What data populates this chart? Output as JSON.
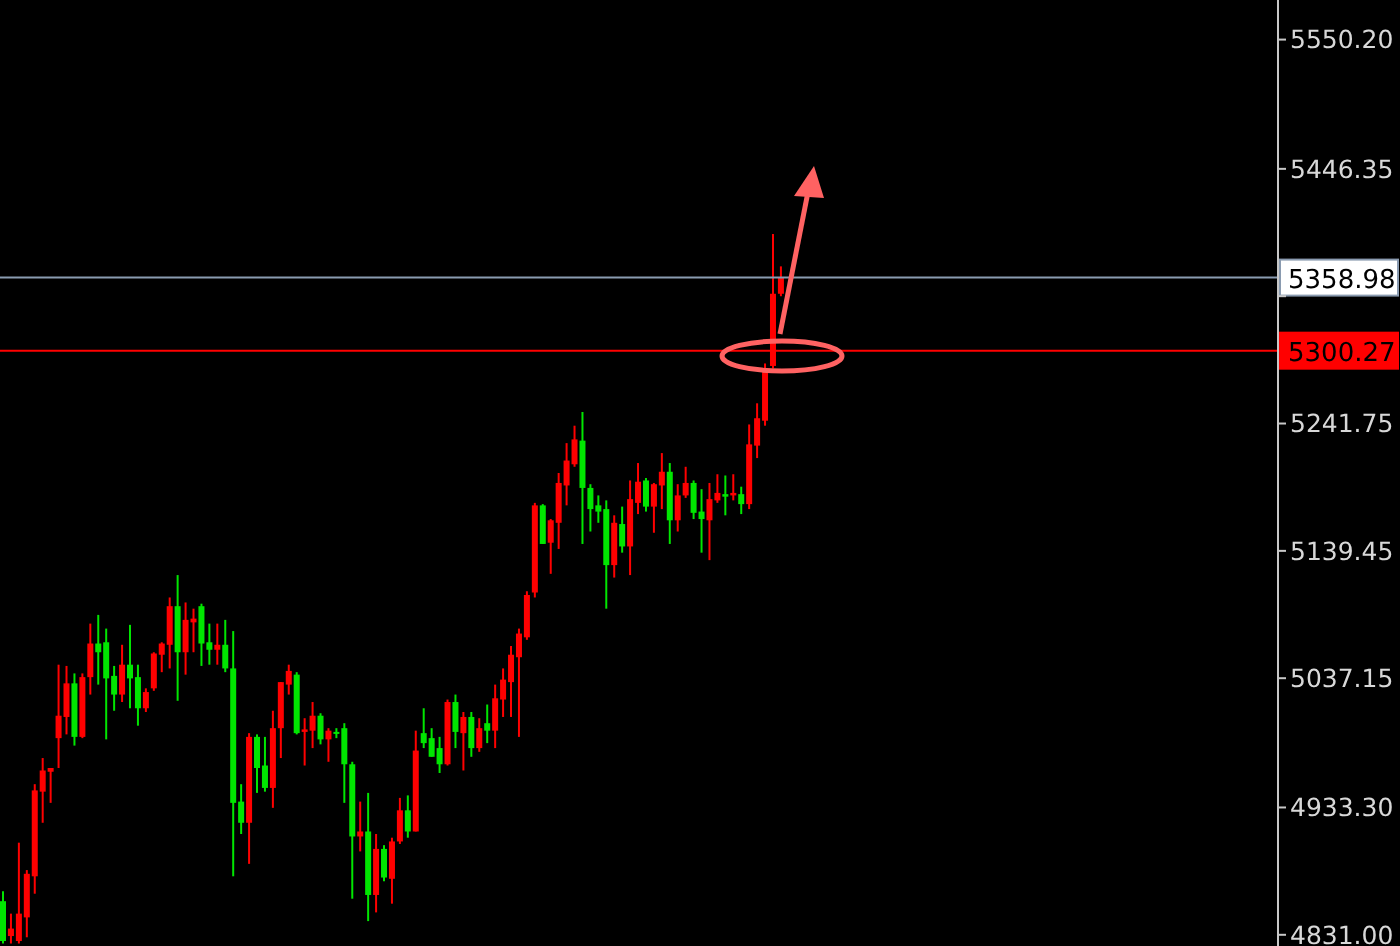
{
  "chart_data": {
    "type": "candlestick",
    "categories": [
      null,
      null,
      null,
      null,
      null,
      null,
      null,
      null,
      null,
      null,
      null,
      null,
      null,
      null,
      null,
      null,
      null,
      null,
      null,
      null,
      null,
      null,
      null,
      null,
      null,
      null,
      null,
      null,
      null,
      null,
      null,
      null,
      null,
      null,
      null,
      null,
      null,
      null,
      null,
      null,
      null,
      null,
      null,
      null,
      null,
      null,
      null,
      null,
      null,
      null,
      null,
      null,
      null,
      null,
      null,
      null,
      null,
      null,
      null,
      null,
      null,
      null,
      null,
      null,
      null,
      null,
      null,
      null,
      null,
      null,
      null,
      null,
      null,
      null,
      null,
      null,
      null,
      null,
      null,
      null,
      null,
      null,
      null,
      null,
      null,
      null,
      null,
      null,
      null,
      null,
      null,
      null,
      null,
      null,
      null,
      null,
      null,
      null,
      null,
      null,
      null,
      null,
      null,
      null,
      null,
      null,
      null,
      null,
      null,
      null,
      null,
      null,
      null,
      null,
      null,
      null,
      null,
      null,
      null,
      null,
      null,
      null,
      null,
      null,
      null,
      null,
      null,
      null,
      null,
      null,
      null,
      null,
      null,
      null,
      null,
      null,
      null,
      null,
      null,
      null,
      null,
      null,
      null,
      null,
      null,
      null,
      null,
      null,
      null,
      null,
      null,
      null,
      null,
      null,
      null,
      null,
      null,
      null,
      null,
      null,
      null
    ],
    "ohlc": [
      [
        4858,
        4866,
        4824,
        4826
      ],
      [
        4830,
        4848,
        4824,
        4836
      ],
      [
        4826,
        4905,
        4824,
        4848
      ],
      [
        4845,
        4883,
        4829,
        4880
      ],
      [
        4878,
        4952,
        4864,
        4947
      ],
      [
        4946,
        4973,
        4921,
        4963
      ],
      [
        4962,
        4965,
        4937,
        4965
      ],
      [
        4989,
        5048,
        4965,
        5007
      ],
      [
        5006,
        5047,
        4992,
        5033
      ],
      [
        5033,
        5041,
        4983,
        4990
      ],
      [
        4990,
        5041,
        4989,
        5038
      ],
      [
        5038,
        5081,
        5024,
        5065
      ],
      [
        5065,
        5088,
        5032,
        5058
      ],
      [
        5066,
        5077,
        4988,
        5037
      ],
      [
        5039,
        5047,
        5011,
        5024
      ],
      [
        5024,
        5064,
        5018,
        5048
      ],
      [
        5048,
        5080,
        5013,
        5037
      ],
      [
        5038,
        5048,
        4999,
        5013
      ],
      [
        5013,
        5029,
        5010,
        5026
      ],
      [
        5029,
        5058,
        5027,
        5057
      ],
      [
        5056,
        5066,
        5042,
        5065
      ],
      [
        5064,
        5102,
        5045,
        5095
      ],
      [
        5095,
        5120,
        5019,
        5058
      ],
      [
        5058,
        5098,
        5040,
        5084
      ],
      [
        5082,
        5093,
        5058,
        5085
      ],
      [
        5095,
        5097,
        5047,
        5065
      ],
      [
        5066,
        5081,
        5048,
        5060
      ],
      [
        5060,
        5081,
        5048,
        5064
      ],
      [
        5064,
        5084,
        5042,
        5045
      ],
      [
        5045,
        5075,
        4878,
        4937
      ],
      [
        4938,
        4952,
        4912,
        4921
      ],
      [
        4921,
        4993,
        4888,
        4990
      ],
      [
        4990,
        4992,
        4945,
        4965
      ],
      [
        4967,
        4990,
        4946,
        4949
      ],
      [
        4949,
        5011,
        4933,
        4997
      ],
      [
        4997,
        5034,
        4973,
        5034
      ],
      [
        5032,
        5048,
        5024,
        5043
      ],
      [
        5040,
        5042,
        4992,
        4993
      ],
      [
        4994,
        5005,
        4967,
        4996
      ],
      [
        4995,
        5018,
        4981,
        5007
      ],
      [
        5007,
        5009,
        4984,
        4988
      ],
      [
        4988,
        4997,
        4970,
        4995
      ],
      [
        4994,
        4997,
        4989,
        4993
      ],
      [
        4997,
        5001,
        4937,
        4968
      ],
      [
        4968,
        4970,
        4860,
        4910
      ],
      [
        4910,
        4938,
        4898,
        4914
      ],
      [
        4914,
        4945,
        4842,
        4863
      ],
      [
        4863,
        4912,
        4849,
        4900
      ],
      [
        4900,
        4903,
        4874,
        4877
      ],
      [
        4876,
        4909,
        4856,
        4906
      ],
      [
        4906,
        4941,
        4904,
        4931
      ],
      [
        4931,
        4943,
        4909,
        4914
      ],
      [
        4914,
        4995,
        4914,
        4979
      ],
      [
        4993,
        5013,
        4981,
        4985
      ],
      [
        4989,
        4997,
        4974,
        4974
      ],
      [
        4981,
        4990,
        4961,
        4968
      ],
      [
        4968,
        5020,
        4967,
        5018
      ],
      [
        5018,
        5024,
        4981,
        4994
      ],
      [
        4993,
        5010,
        4963,
        5006
      ],
      [
        5006,
        5010,
        4974,
        4981
      ],
      [
        4981,
        5005,
        4978,
        4997
      ],
      [
        5001,
        5016,
        4985,
        4995
      ],
      [
        4995,
        5032,
        4981,
        5021
      ],
      [
        5020,
        5045,
        5006,
        5036
      ],
      [
        5034,
        5063,
        5006,
        5056
      ],
      [
        5054,
        5077,
        4990,
        5073
      ],
      [
        5070,
        5107,
        5068,
        5104
      ],
      [
        5106,
        5178,
        5102,
        5176
      ],
      [
        5176,
        5177,
        5145,
        5145
      ],
      [
        5146,
        5165,
        5121,
        5164
      ],
      [
        5162,
        5202,
        5141,
        5194
      ],
      [
        5192,
        5226,
        5176,
        5212
      ],
      [
        5209,
        5240,
        5207,
        5229
      ],
      [
        5228,
        5251,
        5145,
        5190
      ],
      [
        5190,
        5193,
        5155,
        5173
      ],
      [
        5176,
        5184,
        5162,
        5171
      ],
      [
        5173,
        5180,
        5093,
        5128
      ],
      [
        5128,
        5168,
        5118,
        5162
      ],
      [
        5161,
        5175,
        5138,
        5143
      ],
      [
        5143,
        5196,
        5120,
        5181
      ],
      [
        5178,
        5210,
        5169,
        5195
      ],
      [
        5196,
        5198,
        5171,
        5175
      ],
      [
        5175,
        5194,
        5154,
        5193
      ],
      [
        5192,
        5218,
        5173,
        5203
      ],
      [
        5203,
        5210,
        5145,
        5164
      ],
      [
        5164,
        5193,
        5155,
        5184
      ],
      [
        5184,
        5207,
        5182,
        5194
      ],
      [
        5194,
        5196,
        5165,
        5170
      ],
      [
        5171,
        5189,
        5138,
        5165
      ],
      [
        5164,
        5194,
        5132,
        5181
      ],
      [
        5180,
        5201,
        5178,
        5186
      ],
      [
        5185,
        5200,
        5168,
        5183
      ],
      [
        5184,
        5201,
        5180,
        5186
      ],
      [
        5185,
        5191,
        5169,
        5177
      ],
      [
        5177,
        5241,
        5173,
        5225
      ],
      [
        5224,
        5258,
        5214,
        5246
      ],
      [
        5244,
        5290,
        5240,
        5285
      ],
      [
        5288,
        5394,
        5286,
        5346
      ],
      [
        5346,
        5368,
        5344,
        5359
      ],
      null,
      null,
      null,
      null,
      null,
      null,
      null,
      null,
      null,
      null,
      null,
      null,
      null,
      null,
      null,
      null,
      null,
      null,
      null,
      null,
      null,
      null,
      null,
      null,
      null,
      null,
      null,
      null,
      null,
      null,
      null,
      null,
      null,
      null,
      null,
      null,
      null,
      null,
      null,
      null,
      null,
      null,
      null,
      null,
      null,
      null,
      null,
      null,
      null,
      null,
      null,
      null,
      null,
      null,
      null,
      null,
      null,
      null,
      null,
      null,
      null,
      null
    ],
    "colors": [
      "#00e600",
      "#ff0000",
      "#ff0000",
      "#ff0000",
      "#ff0000",
      "#ff0000",
      "#ff0000",
      "#ff0000",
      "#ff0000",
      "#00e600",
      "#ff0000",
      "#ff0000",
      "#00e600",
      "#00e600",
      "#00e600",
      "#ff0000",
      "#00e600",
      "#00e600",
      "#ff0000",
      "#ff0000",
      "#ff0000",
      "#ff0000",
      "#00e600",
      "#ff0000",
      "#ff0000",
      "#00e600",
      "#00e600",
      "#ff0000",
      "#00e600",
      "#00e600",
      "#00e600",
      "#ff0000",
      "#00e600",
      "#00e600",
      "#ff0000",
      "#ff0000",
      "#ff0000",
      "#00e600",
      "#ff0000",
      "#ff0000",
      "#00e600",
      "#ff0000",
      "#00e600",
      "#00e600",
      "#00e600",
      "#ff0000",
      "#00e600",
      "#ff0000",
      "#00e600",
      "#ff0000",
      "#ff0000",
      "#00e600",
      "#ff0000",
      "#00e600",
      "#00e600",
      "#00e600",
      "#ff0000",
      "#00e600",
      "#ff0000",
      "#00e600",
      "#ff0000",
      "#00e600",
      "#ff0000",
      "#ff0000",
      "#ff0000",
      "#ff0000",
      "#ff0000",
      "#ff0000",
      "#00e600",
      "#ff0000",
      "#ff0000",
      "#ff0000",
      "#ff0000",
      "#00e600",
      "#00e600",
      "#00e600",
      "#00e600",
      "#ff0000",
      "#00e600",
      "#ff0000",
      "#ff0000",
      "#00e600",
      "#ff0000",
      "#ff0000",
      "#00e600",
      "#ff0000",
      "#ff0000",
      "#00e600",
      "#00e600",
      "#ff0000",
      "#ff0000",
      "#00e600",
      "#ff0000",
      "#00e600",
      "#ff0000",
      "#ff0000",
      "#ff0000",
      "#ff0000",
      "#ff0000",
      null,
      null,
      null,
      null,
      null,
      null,
      null,
      null,
      null,
      null,
      null,
      null,
      null,
      null,
      null,
      null,
      null,
      null,
      null,
      null,
      null,
      null,
      null,
      null,
      null,
      null,
      null,
      null,
      null,
      null,
      null,
      null,
      null,
      null,
      null,
      null,
      null,
      null,
      null,
      null,
      null,
      null,
      null,
      null,
      null,
      null,
      null,
      null,
      null,
      null,
      null,
      null,
      null,
      null,
      null,
      null,
      null,
      null,
      null,
      null,
      null,
      null
    ],
    "ylim": [
      4822,
      5582
    ],
    "yticks": [
      {
        "value": 5550.2,
        "label": "5550.20"
      },
      {
        "value": 5446.35,
        "label": "5446.35"
      },
      {
        "value": 5344.05,
        "label": null
      },
      {
        "value": 5241.75,
        "label": "5241.75"
      },
      {
        "value": 5139.45,
        "label": "5139.45"
      },
      {
        "value": 5037.15,
        "label": "5037.15"
      },
      {
        "value": 4933.3,
        "label": "4933.30"
      },
      {
        "value": 4831,
        "label": "4831.00"
      }
    ],
    "ref_lines": [
      {
        "axis": "y",
        "value": 5358.98,
        "label": "5358.98",
        "color": "#8a9bb0"
      },
      {
        "axis": "y",
        "value": 5300.27,
        "label": "5300.27",
        "color": "#ff0000"
      }
    ],
    "tick_labels": "y",
    "grid": false,
    "legend": false
  }
}
